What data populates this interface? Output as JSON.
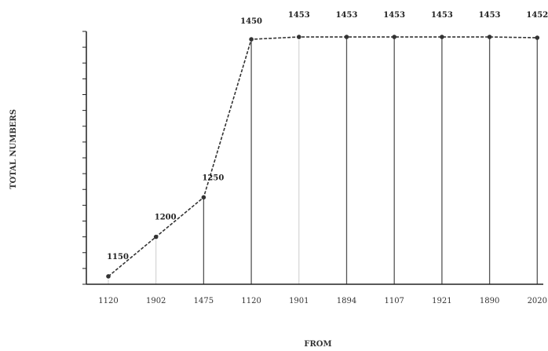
{
  "chart_data": {
    "type": "line",
    "title": "",
    "xlabel": "FROM",
    "ylabel": "TOTAL NUMBERS",
    "x": [
      "1120",
      "1902",
      "1475",
      "1120",
      "1901",
      "1894",
      "1107",
      "1921",
      "1890",
      "2020"
    ],
    "y": [
      1150,
      1200,
      1250,
      1450,
      1453,
      1453,
      1453,
      1453,
      1453,
      1452
    ],
    "point_labels": [
      "1150",
      "1200",
      "1250",
      "1450",
      "1453",
      "1453",
      "1453",
      "1453",
      "1453",
      "1452"
    ],
    "ylim": [
      1140,
      1460
    ],
    "grid": "vertical",
    "legend": "none",
    "colors": {
      "line": "#333333",
      "grid_light": "#cccccc",
      "grid_dark": "#555555",
      "axis": "#222222"
    }
  }
}
